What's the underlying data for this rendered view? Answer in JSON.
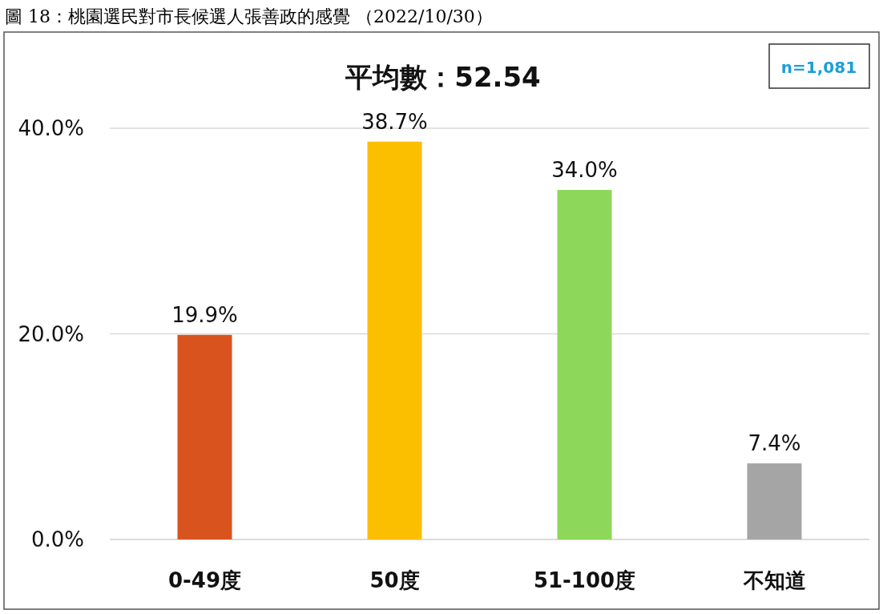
{
  "chart_data": {
    "type": "bar",
    "title": "圖 18：桃園選民對市長候選人張善政的感覺 （2022/10/30）",
    "subtitle": "平均數：52.54",
    "annotations": [
      "n=1,081"
    ],
    "categories": [
      "0-49度",
      "50度",
      "51-100度",
      "不知道"
    ],
    "values": [
      19.9,
      38.7,
      34.0,
      7.4
    ],
    "colors": [
      "#d9531e",
      "#fcbf00",
      "#8dd85a",
      "#a5a5a5"
    ],
    "value_labels": [
      "19.9%",
      "38.7%",
      "34.0%",
      "7.4%"
    ],
    "ylim": [
      0,
      40
    ],
    "yticks": [
      {
        "value": 0,
        "label": "0.0%"
      },
      {
        "value": 20,
        "label": "20.0%"
      },
      {
        "value": 40,
        "label": "40.0%"
      }
    ],
    "grid": "y"
  }
}
